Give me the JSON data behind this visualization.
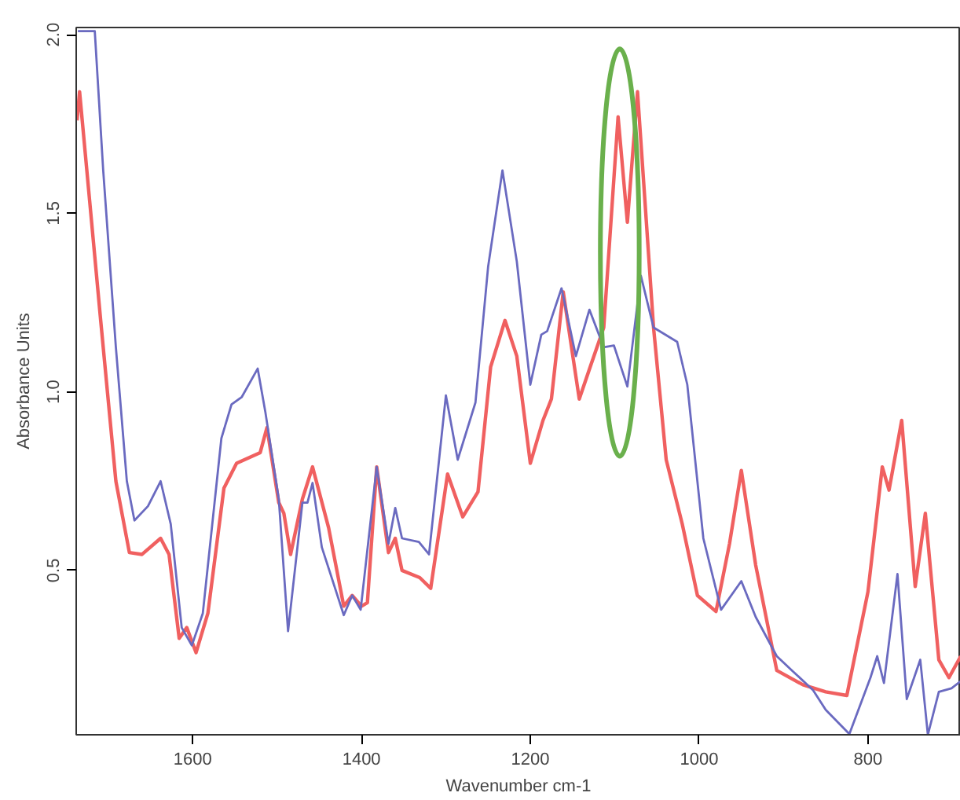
{
  "chart_data": {
    "type": "line",
    "xlabel": "Wavenumber cm-1",
    "ylabel": "Absorbance Units",
    "xlim": [
      1738,
      690
    ],
    "ylim": [
      0.04,
      2.02
    ],
    "xticks": [
      1600,
      1400,
      1200,
      1000,
      800
    ],
    "yticks": [
      {
        "value": 0.5,
        "label": "0.5"
      },
      {
        "value": 1.0,
        "label": "1.0"
      },
      {
        "value": 1.5,
        "label": "1.5"
      },
      {
        "value": 2.0,
        "label": "2.0"
      }
    ],
    "grid": false,
    "marker": "none",
    "line_style": "solid",
    "series": [
      {
        "color": "#f06060",
        "x": [
          1737,
          1734,
          1709,
          1691,
          1675,
          1660,
          1638,
          1628,
          1616,
          1607,
          1596,
          1582,
          1563,
          1548,
          1520,
          1512,
          1498,
          1492,
          1484,
          1470,
          1458,
          1439,
          1421,
          1411,
          1400,
          1393,
          1382,
          1368,
          1360,
          1352,
          1331,
          1318,
          1298,
          1280,
          1262,
          1247,
          1230,
          1216,
          1200,
          1185,
          1175,
          1161,
          1142,
          1129,
          1113,
          1096,
          1085,
          1073,
          1054,
          1039,
          1020,
          1002,
          980,
          964,
          950,
          933,
          908,
          877,
          850,
          825,
          800,
          783,
          775,
          760,
          744,
          732,
          716,
          704,
          690
        ],
        "values": [
          1.76,
          1.84,
          1.2,
          0.75,
          0.55,
          0.545,
          0.59,
          0.545,
          0.31,
          0.34,
          0.27,
          0.38,
          0.73,
          0.8,
          0.83,
          0.9,
          0.69,
          0.66,
          0.545,
          0.7,
          0.79,
          0.62,
          0.4,
          0.43,
          0.4,
          0.41,
          0.79,
          0.55,
          0.59,
          0.5,
          0.48,
          0.45,
          0.77,
          0.65,
          0.72,
          1.07,
          1.2,
          1.1,
          0.8,
          0.92,
          0.98,
          1.28,
          0.98,
          1.07,
          1.18,
          1.77,
          1.475,
          1.84,
          1.18,
          0.81,
          0.63,
          0.43,
          0.385,
          0.575,
          0.78,
          0.515,
          0.22,
          0.18,
          0.16,
          0.15,
          0.44,
          0.79,
          0.725,
          0.92,
          0.455,
          0.66,
          0.25,
          0.2,
          0.26
        ]
      },
      {
        "color": "#6a6ac0",
        "x": [
          1736,
          1716,
          1706,
          1691,
          1678,
          1669,
          1653,
          1638,
          1626,
          1613,
          1601,
          1588,
          1566,
          1554,
          1542,
          1523,
          1514,
          1498,
          1487,
          1470,
          1464,
          1458,
          1447,
          1421,
          1411,
          1401,
          1382,
          1368,
          1360,
          1352,
          1332,
          1320,
          1300,
          1286,
          1265,
          1250,
          1233,
          1216,
          1200,
          1187,
          1180,
          1163,
          1146,
          1130,
          1113,
          1101,
          1085,
          1069,
          1054,
          1026,
          1014,
          995,
          974,
          950,
          933,
          908,
          890,
          865,
          850,
          822,
          797,
          789,
          781,
          765,
          754,
          738,
          729,
          716,
          701,
          690
        ],
        "values": [
          2.01,
          2.01,
          1.62,
          1.125,
          0.75,
          0.64,
          0.68,
          0.75,
          0.63,
          0.34,
          0.29,
          0.38,
          0.87,
          0.965,
          0.985,
          1.065,
          0.945,
          0.7,
          0.33,
          0.69,
          0.69,
          0.745,
          0.565,
          0.375,
          0.43,
          0.39,
          0.79,
          0.575,
          0.675,
          0.59,
          0.58,
          0.545,
          0.99,
          0.81,
          0.97,
          1.35,
          1.62,
          1.365,
          1.02,
          1.16,
          1.17,
          1.29,
          1.1,
          1.23,
          1.125,
          1.13,
          1.015,
          1.325,
          1.18,
          1.14,
          1.02,
          0.59,
          0.39,
          0.47,
          0.37,
          0.26,
          0.22,
          0.165,
          0.11,
          0.042,
          0.2,
          0.26,
          0.185,
          0.49,
          0.14,
          0.25,
          0.04,
          0.16,
          0.17,
          0.19
        ]
      }
    ]
  }
}
